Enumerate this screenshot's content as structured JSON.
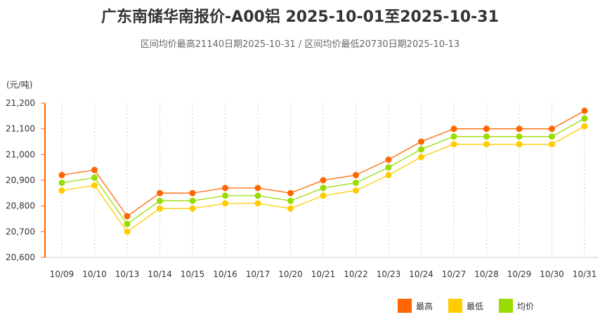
{
  "chart_data": {
    "type": "line",
    "title": "广东南储华南报价-A00铝 2025-10-01至2025-10-31",
    "subtitle": "区间均价最高21140日期2025-10-31 / 区间均价最低20730日期2025-10-13",
    "ylabel": "(元/吨)",
    "ylim": [
      20600,
      21200
    ],
    "yticks": [
      "20,600",
      "20,700",
      "20,800",
      "20,900",
      "21,000",
      "21,100",
      "21,200"
    ],
    "categories": [
      "10/09",
      "10/10",
      "10/13",
      "10/14",
      "10/15",
      "10/16",
      "10/17",
      "10/20",
      "10/21",
      "10/22",
      "10/23",
      "10/24",
      "10/27",
      "10/28",
      "10/29",
      "10/30",
      "10/31"
    ],
    "grid": "vertical dashed",
    "legend_position": "bottom-right",
    "series": [
      {
        "name": "最高",
        "color": "#ff6600",
        "values": [
          20920,
          20940,
          20760,
          20850,
          20850,
          20870,
          20870,
          20850,
          20900,
          20920,
          20980,
          21050,
          21100,
          21100,
          21100,
          21100,
          21170
        ]
      },
      {
        "name": "最低",
        "color": "#ffcc00",
        "values": [
          20860,
          20880,
          20700,
          20790,
          20790,
          20810,
          20810,
          20790,
          20840,
          20860,
          20920,
          20990,
          21040,
          21040,
          21040,
          21040,
          21110
        ]
      },
      {
        "name": "均价",
        "color": "#99dd00",
        "values": [
          20890,
          20910,
          20730,
          20820,
          20820,
          20840,
          20840,
          20820,
          20870,
          20890,
          20950,
          21020,
          21070,
          21070,
          21070,
          21070,
          21140
        ]
      }
    ]
  }
}
